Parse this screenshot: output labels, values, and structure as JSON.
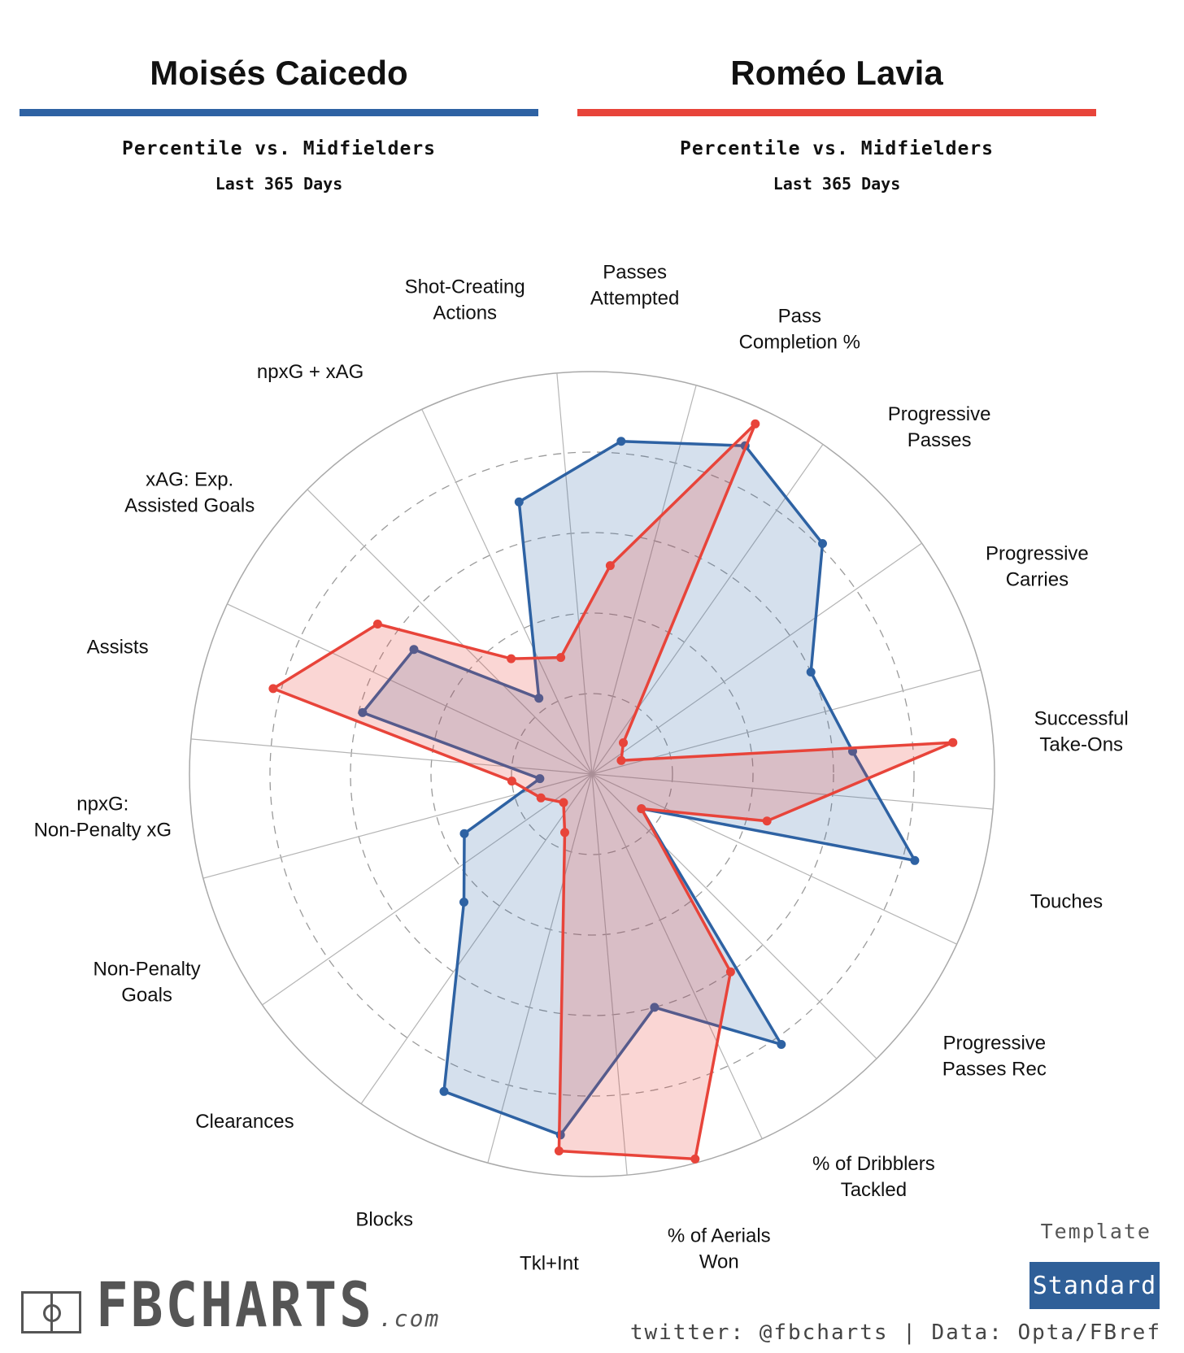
{
  "players": [
    {
      "name": "Moisés Caicedo",
      "subtitle": "Percentile vs. Midfielders",
      "period": "Last 365 Days",
      "color": "#2e62a3"
    },
    {
      "name": "Roméo Lavia",
      "subtitle": "Percentile vs. Midfielders",
      "period": "Last 365 Days",
      "color": "#e8443a"
    }
  ],
  "template": {
    "label": "Template",
    "value": "Standard"
  },
  "credit": "twitter: @fbcharts | Data: Opta/FBref",
  "logo": {
    "text": "FBCHARTS",
    "domain": ".com"
  },
  "chart_data": {
    "type": "radar",
    "range": [
      0,
      100
    ],
    "grid": true,
    "rings": [
      20,
      40,
      60,
      80,
      100
    ],
    "categories": [
      "Passes Attempted",
      "Pass Completion %",
      "Progressive Passes",
      "Progressive Carries",
      "Successful Take-Ons",
      "Touches",
      "Progressive Passes Rec",
      "% of Dribblers Tackled",
      "% of Aerials Won",
      "Tkl+Int",
      "Blocks",
      "Clearances",
      "Non-Penalty Goals",
      "npxG: Non-Penalty xG",
      "Assists",
      "xAG: Exp. Assisted Goals",
      "npxG + xAG",
      "Shot-Creating Actions"
    ],
    "series": [
      {
        "name": "Moisés Caicedo",
        "values": [
          83,
          90,
          81,
          60,
          65,
          83,
          15,
          82,
          60,
          90,
          87,
          45,
          35,
          13,
          59,
          54,
          23,
          70
        ]
      },
      {
        "name": "Roméo Lavia",
        "values": [
          52,
          96,
          11,
          8,
          90,
          45,
          15,
          60,
          99,
          94,
          16,
          10,
          14,
          20,
          82,
          65,
          35,
          30
        ]
      }
    ]
  }
}
